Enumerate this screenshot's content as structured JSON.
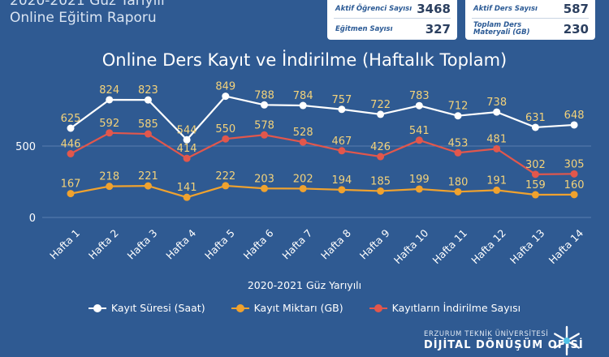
{
  "header": {
    "line1": "2020-2021 Güz Yarıyılı",
    "line2": "Online Eğitim Raporu"
  },
  "stats": {
    "active_students_label": "Aktif Öğrenci Sayısı",
    "active_students_value": "3468",
    "instructors_label": "Eğitmen Sayısı",
    "instructors_value": "327",
    "active_courses_label": "Aktif Ders Sayısı",
    "active_courses_value": "587",
    "materials_label_1": "Toplam Ders",
    "materials_label_2": "Materyali (GB)",
    "materials_value": "230"
  },
  "chart_data": {
    "type": "line",
    "title": "Online Ders Kayıt ve İndirilme (Haftalık Toplam)",
    "xlabel": "2020-2021 Güz Yarıyılı",
    "ylabel": "",
    "ylim": [
      0,
      900
    ],
    "yticks": [
      0,
      500
    ],
    "categories": [
      "Hafta 1",
      "Hafta 2",
      "Hafta 3",
      "Hafta 4",
      "Hafta 5",
      "Hafta 6",
      "Hafta 7",
      "Hafta 8",
      "Hafta 9",
      "Hafta 10",
      "Hafta 11",
      "Hafta 12",
      "Hafta 13",
      "Hafta 14"
    ],
    "series": [
      {
        "name": "Kayıt Süresi (Saat)",
        "color": "#ffffff",
        "values": [
          625,
          824,
          823,
          544,
          849,
          788,
          784,
          757,
          722,
          783,
          712,
          738,
          631,
          648
        ]
      },
      {
        "name": "Kayıt Miktarı (GB)",
        "color": "#f0a22e",
        "values": [
          167,
          218,
          221,
          141,
          222,
          203,
          202,
          194,
          185,
          199,
          180,
          191,
          159,
          160
        ]
      },
      {
        "name": "Kayıtların İndirilme Sayısı",
        "color": "#e2574c",
        "values": [
          446,
          592,
          585,
          414,
          550,
          578,
          528,
          467,
          426,
          541,
          453,
          481,
          302,
          305
        ]
      }
    ],
    "label_color": "#f3d27a",
    "grid": true
  },
  "footer": {
    "org_name": "ERZURUM TEKNİK ÜNİVERSİTESİ",
    "org_unit": "DİJİTAL DÖNÜŞÜM OFİSİ"
  }
}
